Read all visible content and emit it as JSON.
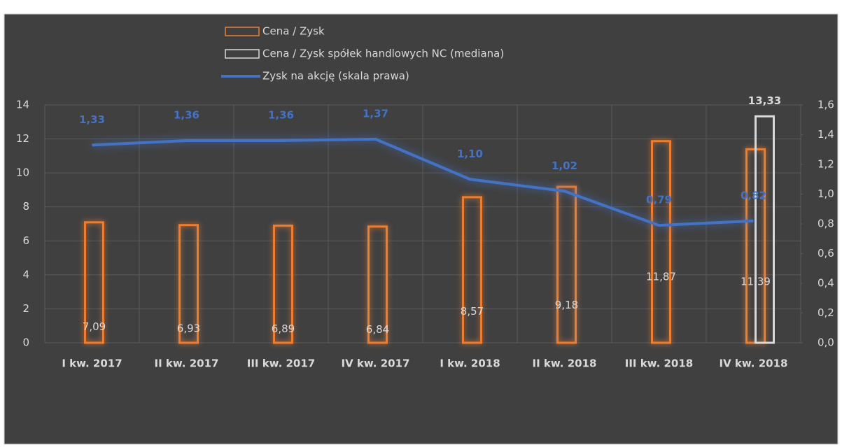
{
  "chart_data": {
    "type": "bar",
    "categories": [
      "I kw. 2017",
      "II kw. 2017",
      "III kw. 2017",
      "IV kw. 2017",
      "I kw. 2018",
      "II kw. 2018",
      "III kw. 2018",
      "IV kw. 2018"
    ],
    "series": [
      {
        "name": "Cena / Zysk",
        "color": "#ED7D31",
        "values": [
          7.09,
          6.93,
          6.89,
          6.84,
          8.57,
          9.18,
          11.87,
          11.39
        ],
        "value_labels": [
          "7,09",
          "6,93",
          "6,89",
          "6,84",
          "8,57",
          "9,18",
          "11,87",
          "11,39"
        ]
      },
      {
        "name": "Cena / Zysk spółek handlowych NC (mediana)",
        "color": "#D9D9D9",
        "values": [
          null,
          null,
          null,
          null,
          null,
          null,
          null,
          13.33
        ],
        "value_labels": [
          null,
          null,
          null,
          null,
          null,
          null,
          null,
          "13,33"
        ]
      },
      {
        "name": "Zysk na akcję (skala prawa)",
        "color": "#4472C4",
        "axis": "y2",
        "type": "line",
        "values": [
          1.33,
          1.36,
          1.36,
          1.37,
          1.1,
          1.02,
          0.79,
          0.82
        ],
        "value_labels": [
          "1,33",
          "1,36",
          "1,36",
          "1,37",
          "1,10",
          "1,02",
          "0,79",
          "0,82"
        ]
      }
    ],
    "ylim": [
      0,
      14
    ],
    "yticks": [
      0,
      2,
      4,
      6,
      8,
      10,
      12,
      14
    ],
    "y2lim": [
      0,
      1.6
    ],
    "y2ticks": [
      {
        "value": 0,
        "label": "0,0"
      },
      {
        "value": 0.2,
        "label": "0,2"
      },
      {
        "value": 0.4,
        "label": "0,4"
      },
      {
        "value": 0.6,
        "label": "0,6"
      },
      {
        "value": 0.8,
        "label": "0,8"
      },
      {
        "value": 1.0,
        "label": "1,0"
      },
      {
        "value": 1.2,
        "label": "1,2"
      },
      {
        "value": 1.4,
        "label": "1,4"
      },
      {
        "value": 1.6,
        "label": "1,6"
      }
    ],
    "grid": true
  }
}
